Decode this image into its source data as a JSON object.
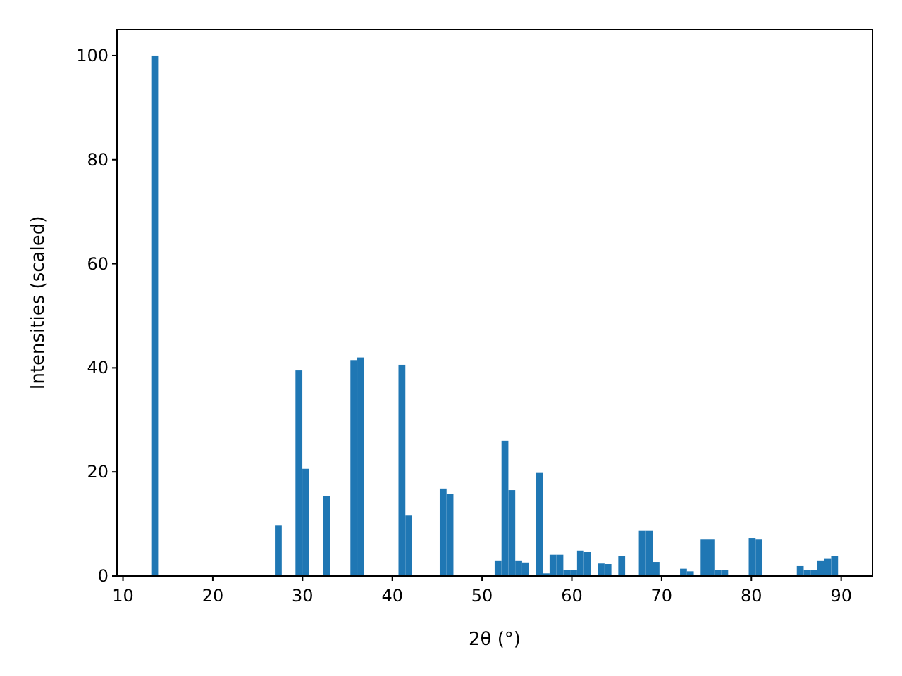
{
  "chart_data": {
    "type": "histogram",
    "xlabel": "2θ (°)",
    "ylabel": "Intensities (scaled)",
    "color": "#1f77b4",
    "bins": [
      13.15,
      13.915,
      14.68,
      15.445,
      16.21,
      16.975,
      17.74,
      18.505,
      19.27,
      20.035,
      20.8,
      21.565,
      22.33,
      23.095,
      23.86,
      24.625,
      25.39,
      26.155,
      26.92,
      27.685,
      28.45,
      29.215,
      29.98,
      30.745,
      31.51,
      32.275,
      33.04,
      33.805,
      34.57,
      35.335,
      36.1,
      36.865,
      37.63,
      38.395,
      39.16,
      39.925,
      40.69,
      41.455,
      42.22,
      42.985,
      43.75,
      44.515,
      45.28,
      46.045,
      46.81,
      47.575,
      48.34,
      49.105,
      49.87,
      50.635,
      51.4,
      52.165,
      52.93,
      53.695,
      54.46,
      55.225,
      55.99,
      56.755,
      57.52,
      58.285,
      59.05,
      59.815,
      60.58,
      61.345,
      62.11,
      62.875,
      63.64,
      64.405,
      65.17,
      65.935,
      66.7,
      67.465,
      68.23,
      68.995,
      69.76,
      70.525,
      71.29,
      72.055,
      72.82,
      73.585,
      74.35,
      75.115,
      75.88,
      76.645,
      77.41,
      78.175,
      78.94,
      79.705,
      80.47,
      81.235,
      82.0,
      82.765,
      83.53,
      84.295,
      85.06,
      85.825,
      86.59,
      87.355,
      88.12,
      88.885,
      89.65
    ],
    "values": [
      100,
      0,
      0,
      0,
      0,
      0,
      0,
      0,
      0,
      0,
      0,
      0,
      0,
      0,
      0,
      0,
      0,
      0,
      9.7,
      0,
      0,
      39.5,
      20.6,
      0,
      0,
      15.4,
      0,
      0,
      0,
      41.5,
      42,
      0,
      0,
      0,
      0,
      0,
      40.6,
      11.6,
      0,
      0,
      0,
      0,
      16.8,
      15.7,
      0,
      0,
      0,
      0,
      0,
      0,
      3.0,
      26.0,
      16.5,
      3.0,
      2.6,
      0,
      19.8,
      0.5,
      4.1,
      4.1,
      1.1,
      1.1,
      4.9,
      4.6,
      0,
      2.4,
      2.3,
      0,
      3.8,
      0,
      0,
      8.7,
      8.7,
      2.7,
      0,
      0,
      0,
      1.4,
      0.9,
      0,
      7.0,
      7.0,
      1.1,
      1.1,
      0,
      0,
      0,
      7.3,
      7.0,
      0,
      0,
      0,
      0,
      0,
      1.9,
      1.1,
      1.1,
      3.0,
      3.3,
      3.8
    ],
    "xlim": [
      9.33,
      93.48
    ],
    "ylim": [
      0,
      105
    ],
    "xticks": [
      10,
      20,
      30,
      40,
      50,
      60,
      70,
      80,
      90
    ],
    "yticks": [
      0,
      20,
      40,
      60,
      80,
      100
    ],
    "grid": false
  }
}
